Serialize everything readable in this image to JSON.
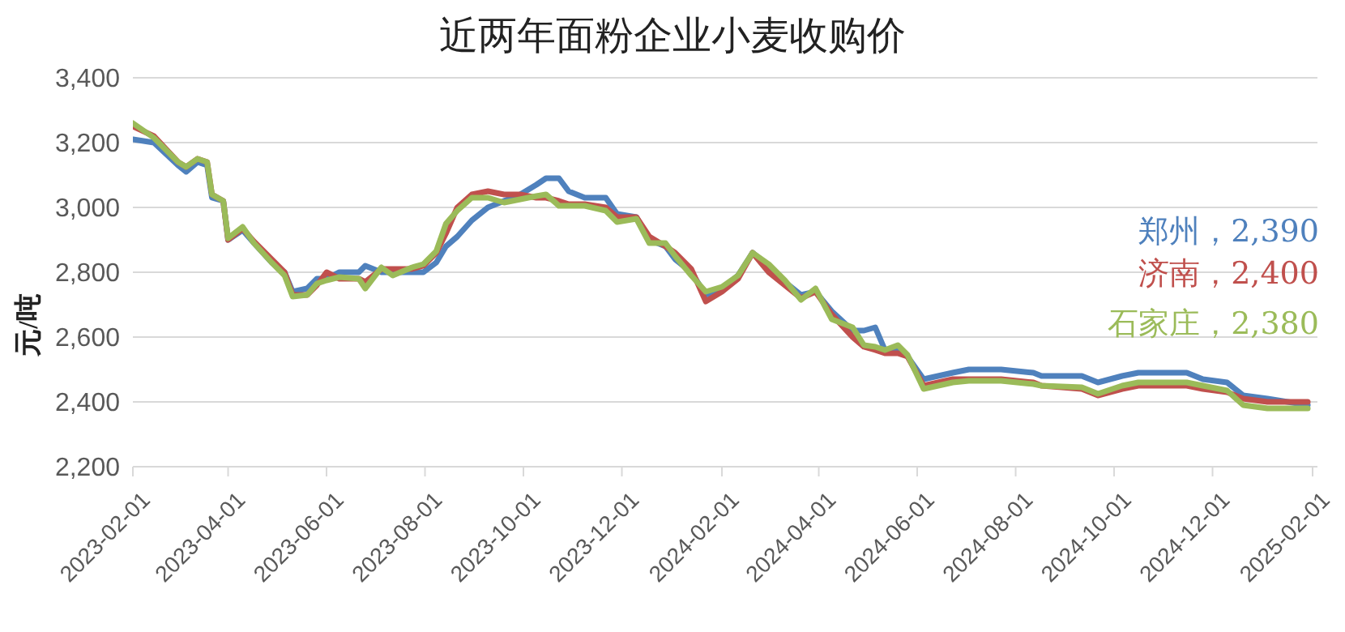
{
  "chart_data": {
    "type": "line",
    "title": "近两年面粉企业小麦收购价",
    "ylabel": "元/吨",
    "x": [
      "2023-02-01",
      "2023-02-14",
      "2023-03-01",
      "2023-03-06",
      "2023-03-13",
      "2023-03-19",
      "2023-03-22",
      "2023-03-29",
      "2023-04-01",
      "2023-04-10",
      "2023-04-17",
      "2023-04-28",
      "2023-05-06",
      "2023-05-11",
      "2023-05-20",
      "2023-05-26",
      "2023-06-01",
      "2023-06-09",
      "2023-06-21",
      "2023-06-25",
      "2023-07-05",
      "2023-07-12",
      "2023-07-24",
      "2023-07-31",
      "2023-08-08",
      "2023-08-14",
      "2023-08-21",
      "2023-08-30",
      "2023-09-09",
      "2023-09-19",
      "2023-09-29",
      "2023-10-09",
      "2023-10-15",
      "2023-10-23",
      "2023-10-29",
      "2023-11-08",
      "2023-11-21",
      "2023-11-28",
      "2023-12-10",
      "2023-12-18",
      "2023-12-28",
      "2024-01-03",
      "2024-01-13",
      "2024-01-22",
      "2024-02-01",
      "2024-02-11",
      "2024-02-20",
      "2024-03-01",
      "2024-03-11",
      "2024-03-21",
      "2024-03-30",
      "2024-04-09",
      "2024-04-22",
      "2024-04-29",
      "2024-05-06",
      "2024-05-12",
      "2024-05-20",
      "2024-05-26",
      "2024-06-05",
      "2024-06-23",
      "2024-07-03",
      "2024-07-23",
      "2024-08-12",
      "2024-08-17",
      "2024-09-11",
      "2024-09-21",
      "2024-10-06",
      "2024-10-16",
      "2024-11-15",
      "2024-11-25",
      "2024-12-10",
      "2024-12-20",
      "2025-01-04",
      "2025-01-29"
    ],
    "series": [
      {
        "name": "郑州，2,390",
        "color": "#4f81bd",
        "values": [
          3210,
          3200,
          3130,
          3110,
          3140,
          3130,
          3030,
          3020,
          2900,
          2930,
          2890,
          2830,
          2800,
          2740,
          2750,
          2780,
          2780,
          2800,
          2800,
          2820,
          2800,
          2800,
          2800,
          2800,
          2830,
          2880,
          2910,
          2960,
          3000,
          3020,
          3040,
          3070,
          3090,
          3090,
          3050,
          3030,
          3030,
          2980,
          2970,
          2900,
          2880,
          2840,
          2800,
          2730,
          2750,
          2790,
          2860,
          2820,
          2770,
          2730,
          2740,
          2680,
          2620,
          2620,
          2630,
          2560,
          2560,
          2540,
          2470,
          2490,
          2500,
          2500,
          2490,
          2480,
          2480,
          2460,
          2480,
          2490,
          2490,
          2470,
          2460,
          2420,
          2410,
          2390
        ]
      },
      {
        "name": "济南，2,400",
        "color": "#c0504d",
        "values": [
          3250,
          3220,
          3140,
          3125,
          3150,
          3140,
          3040,
          3020,
          2900,
          2935,
          2895,
          2840,
          2800,
          2730,
          2730,
          2760,
          2800,
          2780,
          2780,
          2770,
          2810,
          2810,
          2810,
          2820,
          2860,
          2920,
          3000,
          3040,
          3050,
          3040,
          3040,
          3030,
          3030,
          3020,
          3010,
          3010,
          3000,
          2970,
          2970,
          2910,
          2880,
          2860,
          2810,
          2710,
          2740,
          2780,
          2860,
          2800,
          2760,
          2720,
          2740,
          2670,
          2600,
          2570,
          2560,
          2550,
          2550,
          2540,
          2450,
          2470,
          2470,
          2470,
          2460,
          2450,
          2440,
          2420,
          2440,
          2450,
          2450,
          2440,
          2430,
          2410,
          2400,
          2400
        ]
      },
      {
        "name": "石家庄，2,380",
        "color": "#9bbb59",
        "values": [
          3260,
          3215,
          3140,
          3125,
          3150,
          3140,
          3040,
          3020,
          2905,
          2940,
          2890,
          2830,
          2790,
          2725,
          2730,
          2765,
          2775,
          2785,
          2780,
          2750,
          2815,
          2790,
          2815,
          2825,
          2865,
          2950,
          2990,
          3030,
          3030,
          3015,
          3025,
          3035,
          3040,
          3005,
          3005,
          3005,
          2990,
          2955,
          2965,
          2890,
          2890,
          2850,
          2790,
          2740,
          2755,
          2790,
          2860,
          2825,
          2775,
          2715,
          2750,
          2655,
          2630,
          2575,
          2570,
          2560,
          2575,
          2545,
          2440,
          2460,
          2465,
          2465,
          2455,
          2450,
          2445,
          2425,
          2450,
          2460,
          2460,
          2450,
          2435,
          2390,
          2380,
          2380
        ]
      }
    ],
    "xlim": [
      "2023-02-01",
      "2025-02-04"
    ],
    "xticks": [
      "2023-02-01",
      "2023-04-01",
      "2023-06-01",
      "2023-08-01",
      "2023-10-01",
      "2023-12-01",
      "2024-02-01",
      "2024-04-01",
      "2024-06-01",
      "2024-08-01",
      "2024-10-01",
      "2024-12-01",
      "2025-02-01"
    ],
    "ylim": [
      2200,
      3400
    ],
    "yticks": [
      {
        "value": 2200,
        "label": "2,200"
      },
      {
        "value": 2400,
        "label": "2,400"
      },
      {
        "value": 2600,
        "label": "2,600"
      },
      {
        "value": 2800,
        "label": "2,800"
      },
      {
        "value": 3000,
        "label": "3,000"
      },
      {
        "value": 3200,
        "label": "3,200"
      },
      {
        "value": 3400,
        "label": "3,400"
      }
    ],
    "grid": "y",
    "legend": false,
    "marker": "none",
    "line_style": "solid"
  }
}
